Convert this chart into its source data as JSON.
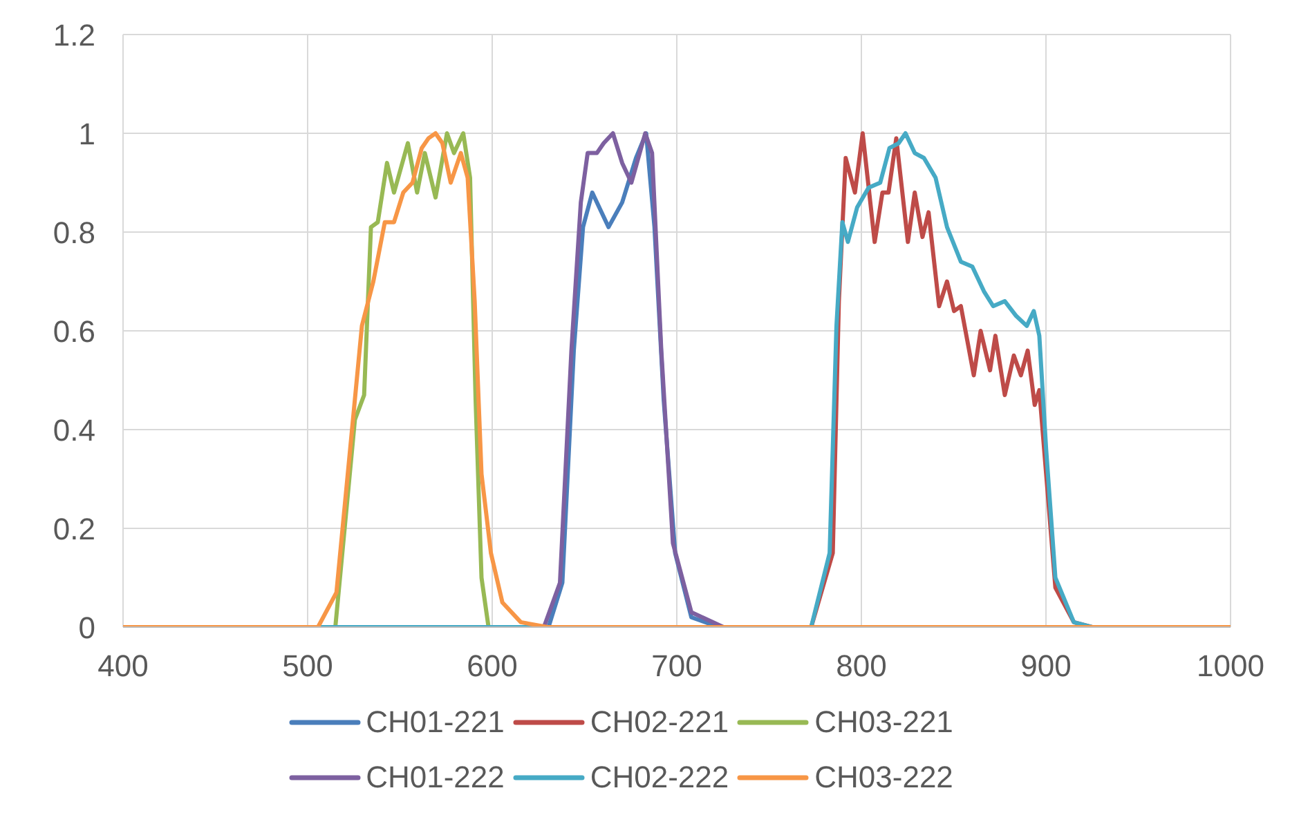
{
  "chart_data": {
    "type": "line",
    "xlim": [
      400,
      1000
    ],
    "xticks": [
      400,
      500,
      600,
      700,
      800,
      900,
      1000
    ],
    "ylim": [
      0,
      1.2
    ],
    "yticks": [
      0,
      0.2,
      0.4,
      0.6,
      0.8,
      1,
      1.2
    ],
    "grid": true,
    "legend": "bottom",
    "series": [
      {
        "name": "CH01-221",
        "color": "#4a7ebb",
        "x": [
          400,
          630.5,
          638,
          644.2,
          649.2,
          654.2,
          663,
          670.4,
          677.9,
          683.4,
          687.9,
          692.9,
          699.1,
          707.9,
          722.8,
          1000
        ],
        "values": [
          0,
          0,
          0.09,
          0.56,
          0.81,
          0.88,
          0.81,
          0.86,
          0.95,
          1,
          0.81,
          0.46,
          0.15,
          0.02,
          0,
          0
        ]
      },
      {
        "name": "CH02-221",
        "color": "#be4b48",
        "x": [
          400,
          772.8,
          784.5,
          787.8,
          791.5,
          796.5,
          800.7,
          807.2,
          811.4,
          814.7,
          818.9,
          825.2,
          828.9,
          833.1,
          836.4,
          842.1,
          846.4,
          850.2,
          853.9,
          860.9,
          864.6,
          869.7,
          872.6,
          877.7,
          882.6,
          886.4,
          890.1,
          893.9,
          896.4,
          900.1,
          905.1,
          915.1,
          925,
          1000
        ],
        "values": [
          0,
          0,
          0.15,
          0.66,
          0.95,
          0.88,
          1,
          0.78,
          0.88,
          0.88,
          0.99,
          0.78,
          0.88,
          0.79,
          0.84,
          0.65,
          0.7,
          0.64,
          0.65,
          0.51,
          0.6,
          0.52,
          0.59,
          0.47,
          0.55,
          0.51,
          0.56,
          0.45,
          0.48,
          0.31,
          0.08,
          0.01,
          0,
          0
        ]
      },
      {
        "name": "CH03-221",
        "color": "#98b954",
        "x": [
          400,
          515,
          525.6,
          530.6,
          534.3,
          538,
          543,
          546.8,
          554.3,
          559.3,
          563.5,
          569.3,
          575.5,
          579.3,
          584.3,
          588,
          591,
          594.2,
          598,
          1000
        ],
        "values": [
          0,
          0,
          0.42,
          0.47,
          0.81,
          0.82,
          0.94,
          0.88,
          0.98,
          0.88,
          0.96,
          0.87,
          1,
          0.96,
          1,
          0.91,
          0.46,
          0.1,
          0,
          0
        ]
      },
      {
        "name": "CH01-222",
        "color": "#7d60a0",
        "x": [
          400,
          628,
          636.7,
          642.9,
          648,
          651.7,
          656.7,
          660.4,
          665.4,
          670.4,
          675.4,
          682.9,
          686.6,
          691.6,
          697.9,
          707.9,
          725.3,
          1000
        ],
        "values": [
          0,
          0,
          0.09,
          0.56,
          0.86,
          0.96,
          0.96,
          0.98,
          1,
          0.94,
          0.9,
          1,
          0.96,
          0.56,
          0.17,
          0.03,
          0,
          0
        ]
      },
      {
        "name": "CH02-222",
        "color": "#46aac5",
        "x": [
          400,
          772.8,
          782.8,
          786.5,
          789.7,
          792.7,
          797.7,
          803.9,
          810.2,
          815.2,
          820.2,
          823.9,
          828.9,
          833.9,
          840.2,
          846.4,
          853.9,
          860.1,
          866.4,
          871.4,
          877.7,
          883.9,
          889.6,
          893.4,
          896.4,
          900.1,
          905.1,
          915.1,
          925,
          1000
        ],
        "values": [
          0,
          0,
          0.15,
          0.61,
          0.82,
          0.78,
          0.85,
          0.89,
          0.9,
          0.97,
          0.98,
          1,
          0.96,
          0.95,
          0.91,
          0.81,
          0.74,
          0.73,
          0.68,
          0.65,
          0.66,
          0.63,
          0.61,
          0.64,
          0.59,
          0.36,
          0.1,
          0.01,
          0,
          0
        ]
      },
      {
        "name": "CH03-222",
        "color": "#f79646",
        "x": [
          400,
          505.6,
          515.6,
          524.3,
          529.4,
          535.6,
          541.8,
          546.8,
          551.8,
          556.8,
          561.8,
          565.5,
          569.3,
          573,
          577.5,
          583,
          586.7,
          590.5,
          594.2,
          599.3,
          605.5,
          615.5,
          630,
          1000
        ],
        "values": [
          0,
          0,
          0.07,
          0.41,
          0.61,
          0.7,
          0.82,
          0.82,
          0.88,
          0.9,
          0.97,
          0.99,
          1,
          0.98,
          0.9,
          0.96,
          0.91,
          0.66,
          0.31,
          0.15,
          0.05,
          0.01,
          0,
          0
        ]
      }
    ]
  }
}
